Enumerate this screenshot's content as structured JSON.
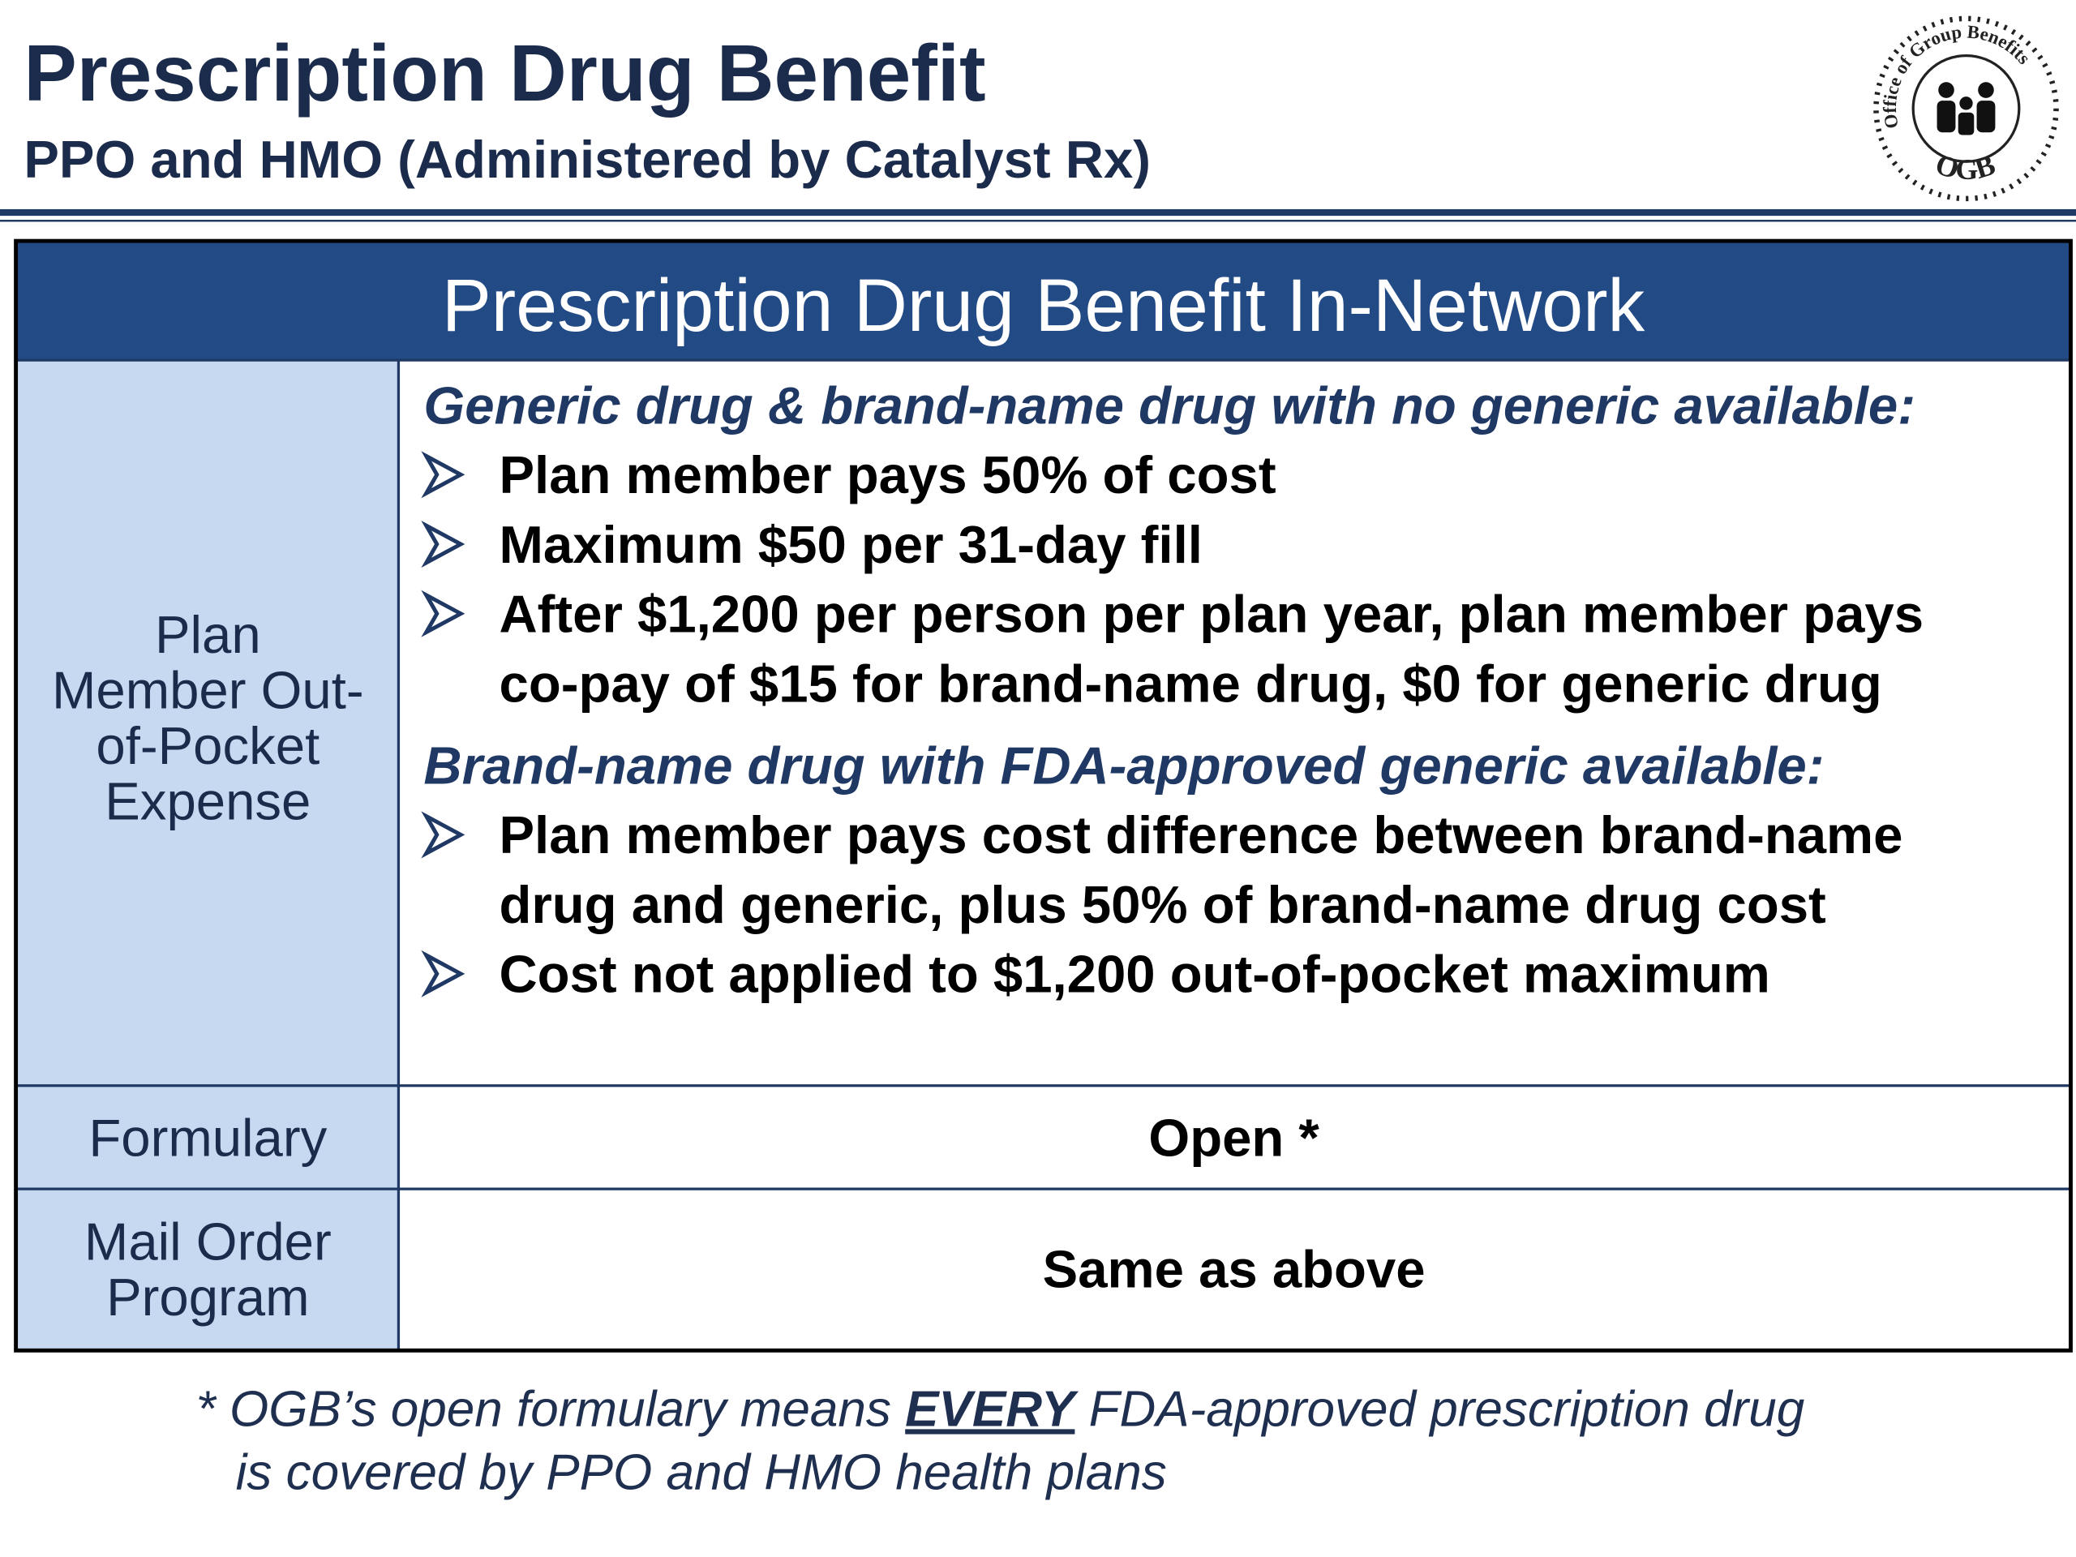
{
  "header": {
    "title": "Prescription Drug Benefit",
    "subtitle": "PPO and HMO (Administered by Catalyst Rx)",
    "logo": {
      "ring": "Office of Group Benefits",
      "initials": "OGB"
    }
  },
  "table": {
    "title": "Prescription Drug Benefit In-Network",
    "rows": [
      {
        "label": [
          "Plan",
          "Member Out-",
          "of-Pocket",
          "Expense"
        ],
        "sections": [
          {
            "heading": "Generic drug & brand-name drug with no generic available:",
            "bullets": [
              [
                "Plan member pays 50% of cost"
              ],
              [
                "Maximum $50 per 31-day fill"
              ],
              [
                "After $1,200 per person per plan year, plan member pays",
                "co-pay of $15 for brand-name drug, $0 for generic drug"
              ]
            ]
          },
          {
            "heading": "Brand-name drug with FDA-approved generic available:",
            "bullets": [
              [
                "Plan member pays cost difference between brand-name",
                "drug and generic, plus 50% of brand-name drug cost"
              ],
              [
                "Cost not applied to $1,200 out-of-pocket maximum"
              ]
            ]
          }
        ]
      },
      {
        "label": [
          "Formulary"
        ],
        "value": "Open *"
      },
      {
        "label": [
          "Mail Order",
          "Program"
        ],
        "value": "Same as above"
      }
    ]
  },
  "footnote": {
    "lines": [
      [
        "* OGB’s open formulary means ",
        "EVERY",
        " FDA-approved prescription drug"
      ],
      [
        "is covered by PPO and HMO health plans"
      ]
    ]
  }
}
